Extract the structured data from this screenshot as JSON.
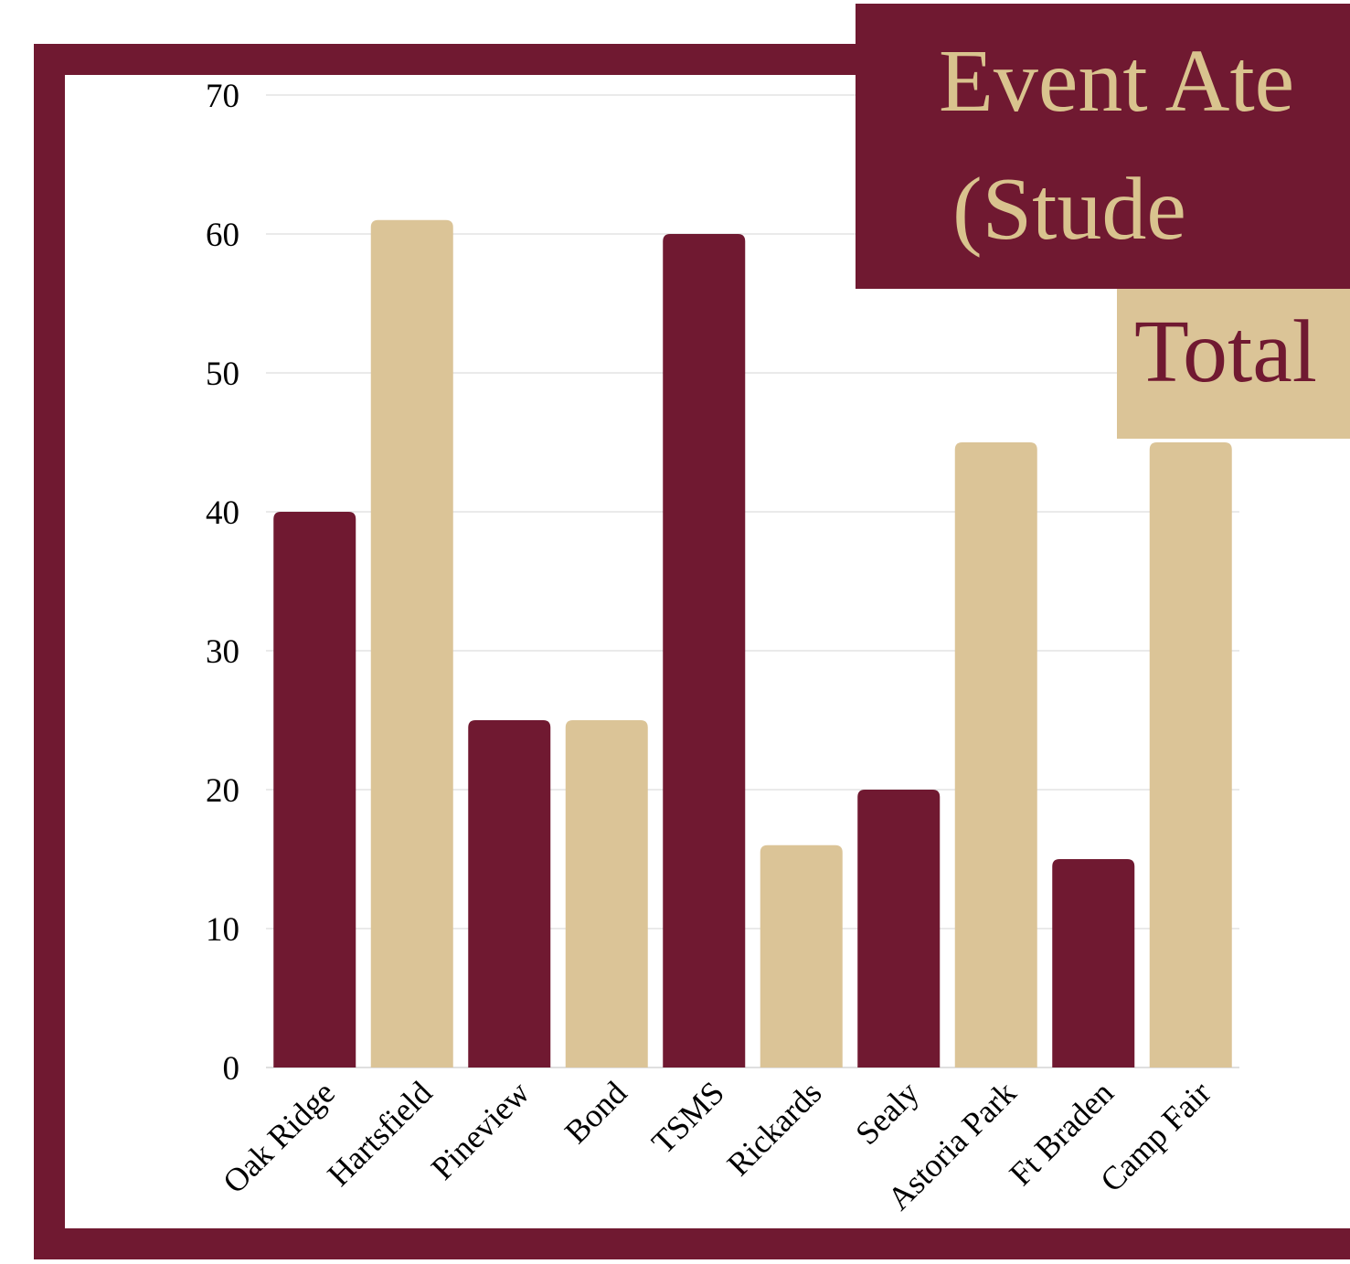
{
  "title": {
    "line1": "Event Ate",
    "line2": "(Stude"
  },
  "subtitle": "Total",
  "colors": {
    "maroon": "#701931",
    "gold": "#dbc497",
    "grid": "#d4d4d4",
    "axis_text": "#000000"
  },
  "chart_data": {
    "type": "bar",
    "categories": [
      "Oak Ridge",
      "Hartsfield",
      "Pineview",
      "Bond",
      "TSMS",
      "Rickards",
      "Sealy",
      "Astoria Park",
      "Ft Braden",
      "Camp Fair"
    ],
    "values": [
      40,
      61,
      25,
      25,
      60,
      16,
      20,
      45,
      15,
      45
    ],
    "bar_colors": [
      "#701931",
      "#dbc497",
      "#701931",
      "#dbc497",
      "#701931",
      "#dbc497",
      "#701931",
      "#dbc497",
      "#701931",
      "#dbc497"
    ],
    "ylim": [
      0,
      70
    ],
    "yticks": [
      "0",
      "10",
      "20",
      "30",
      "40",
      "50",
      "60",
      "70"
    ],
    "grid": true,
    "legend": "none",
    "xlabel": "",
    "ylabel": ""
  }
}
